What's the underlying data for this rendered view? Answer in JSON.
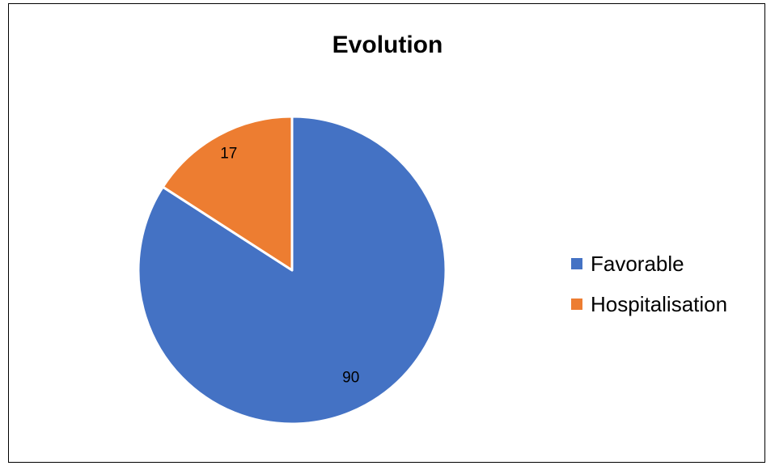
{
  "chart_data": {
    "type": "pie",
    "title": "Evolution",
    "categories": [
      "Favorable",
      "Hospitalisation"
    ],
    "values": [
      90,
      17
    ],
    "data_labels": [
      "90",
      "17"
    ],
    "colors": [
      "#4472C4",
      "#ED7D31"
    ],
    "start_angle": "12 o'clock",
    "direction": "clockwise",
    "legend_position": "right"
  }
}
